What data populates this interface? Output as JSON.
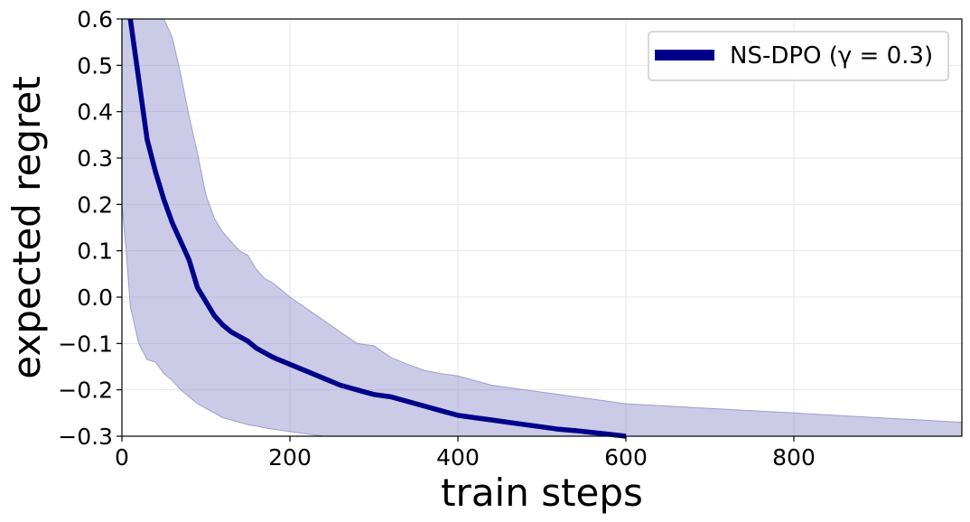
{
  "chart_data": {
    "type": "line",
    "xlabel": "train steps",
    "ylabel": "expected regret",
    "xlim": [
      0,
      1000
    ],
    "ylim": [
      -0.3,
      0.6
    ],
    "xticks": [
      0,
      200,
      400,
      600,
      800
    ],
    "xtick_labels": [
      "0",
      "200",
      "400",
      "600",
      "800"
    ],
    "yticks": [
      0.6,
      0.5,
      0.4,
      0.3,
      0.2,
      0.1,
      0.0,
      -0.1,
      -0.2,
      -0.3
    ],
    "ytick_labels": [
      "0.6",
      "0.5",
      "0.4",
      "0.3",
      "0.2",
      "0.1",
      "0.0",
      "−0.1",
      "−0.2",
      "−0.3"
    ],
    "grid": true,
    "legend_position": "top-right",
    "series": [
      {
        "name": "NS-DPO (γ = 0.3)",
        "color": "#00008b",
        "band_color": "#8c8cc9",
        "x": [
          10,
          20,
          30,
          40,
          50,
          60,
          70,
          80,
          90,
          100,
          110,
          120,
          130,
          140,
          150,
          160,
          170,
          180,
          200,
          220,
          240,
          260,
          280,
          300,
          320,
          340,
          360,
          380,
          400,
          420,
          440,
          460,
          480,
          500,
          520,
          540,
          560,
          580,
          600
        ],
        "y": [
          0.6,
          0.47,
          0.34,
          0.27,
          0.21,
          0.16,
          0.12,
          0.08,
          0.02,
          -0.01,
          -0.04,
          -0.06,
          -0.075,
          -0.085,
          -0.095,
          -0.11,
          -0.12,
          -0.13,
          -0.145,
          -0.16,
          -0.175,
          -0.19,
          -0.2,
          -0.21,
          -0.215,
          -0.225,
          -0.235,
          -0.245,
          -0.255,
          -0.26,
          -0.265,
          -0.27,
          -0.275,
          -0.28,
          -0.285,
          -0.288,
          -0.292,
          -0.296,
          -0.3
        ],
        "band_x": [
          0,
          5,
          10,
          20,
          30,
          40,
          50,
          60,
          70,
          80,
          90,
          100,
          110,
          120,
          130,
          140,
          150,
          160,
          170,
          180,
          200,
          220,
          240,
          260,
          280,
          300,
          320,
          340,
          360,
          380,
          400,
          420,
          440,
          460,
          480,
          500,
          520,
          540,
          560,
          580,
          600,
          650,
          700,
          750,
          800,
          850,
          900,
          950,
          1000
        ],
        "band_upper": [
          0.6,
          0.6,
          0.6,
          0.6,
          0.6,
          0.6,
          0.6,
          0.56,
          0.48,
          0.39,
          0.31,
          0.22,
          0.17,
          0.14,
          0.12,
          0.1,
          0.09,
          0.06,
          0.04,
          0.03,
          0.0,
          -0.025,
          -0.05,
          -0.075,
          -0.1,
          -0.105,
          -0.13,
          -0.145,
          -0.158,
          -0.165,
          -0.17,
          -0.18,
          -0.19,
          -0.195,
          -0.2,
          -0.205,
          -0.21,
          -0.215,
          -0.22,
          -0.225,
          -0.23,
          -0.235,
          -0.24,
          -0.245,
          -0.25,
          -0.255,
          -0.26,
          -0.265,
          -0.27
        ],
        "band_lower": [
          0.2,
          0.1,
          -0.02,
          -0.1,
          -0.135,
          -0.14,
          -0.165,
          -0.18,
          -0.2,
          -0.215,
          -0.23,
          -0.24,
          -0.25,
          -0.26,
          -0.265,
          -0.27,
          -0.275,
          -0.278,
          -0.282,
          -0.285,
          -0.29,
          -0.295,
          -0.3,
          -0.3,
          -0.3,
          -0.3,
          -0.3,
          -0.3,
          -0.3,
          -0.3,
          -0.3,
          -0.3,
          -0.3,
          -0.3,
          -0.3,
          -0.3,
          -0.3,
          -0.3,
          -0.3,
          -0.3,
          -0.3,
          -0.3,
          -0.3,
          -0.3,
          -0.3,
          -0.3,
          -0.3,
          -0.3,
          -0.3
        ]
      }
    ]
  }
}
